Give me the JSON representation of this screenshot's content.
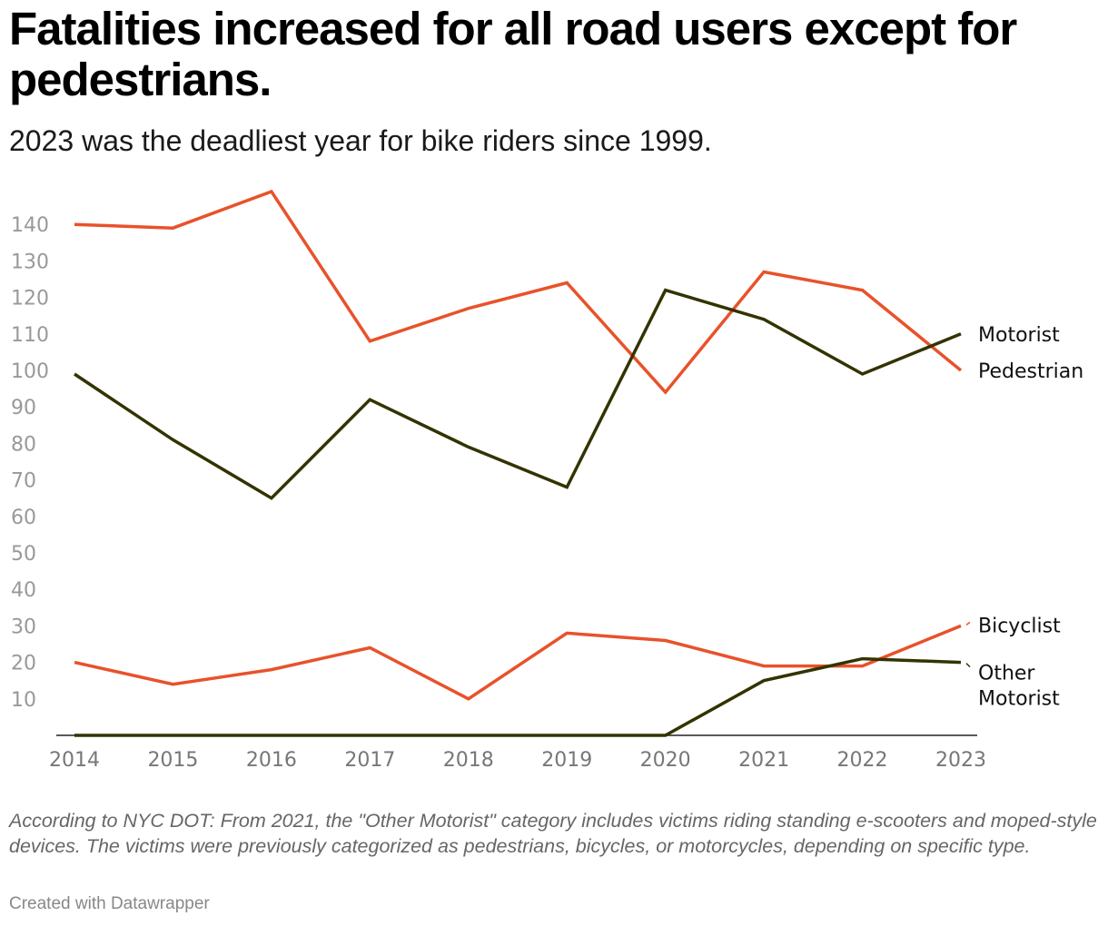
{
  "title": "Fatalities increased for all road users except for pedestrians.",
  "subtitle": "2023 was the deadliest year for bike riders since 1999.",
  "footnote": "According to NYC DOT: From 2021, the \"Other Motorist\" category includes victims riding standing e-scooters and moped-style devices. The victims were previously categorized as pedestrians, bicycles, or motorcycles, depending on specific type.",
  "credit": "Created with Datawrapper",
  "colors": {
    "orange": "#E8522A",
    "dark": "#333300"
  },
  "chart_data": {
    "type": "line",
    "x": [
      2014,
      2015,
      2016,
      2017,
      2018,
      2019,
      2020,
      2021,
      2022,
      2023
    ],
    "ylim": [
      0,
      150
    ],
    "yticks": [
      10,
      20,
      30,
      40,
      50,
      60,
      70,
      80,
      90,
      100,
      110,
      120,
      130,
      140
    ],
    "grid": false,
    "series": [
      {
        "name": "Pedestrian",
        "color": "#E8522A",
        "values": [
          140,
          139,
          149,
          108,
          117,
          124,
          94,
          127,
          122,
          100
        ]
      },
      {
        "name": "Motorist",
        "color": "#333300",
        "values": [
          99,
          81,
          65,
          92,
          79,
          68,
          122,
          114,
          99,
          110
        ]
      },
      {
        "name": "Bicyclist",
        "color": "#E8522A",
        "values": [
          20,
          14,
          18,
          24,
          10,
          28,
          26,
          19,
          19,
          30
        ]
      },
      {
        "name": "Other Motorist",
        "color": "#333300",
        "values": [
          0,
          0,
          0,
          0,
          0,
          0,
          0,
          15,
          21,
          20
        ]
      }
    ]
  }
}
